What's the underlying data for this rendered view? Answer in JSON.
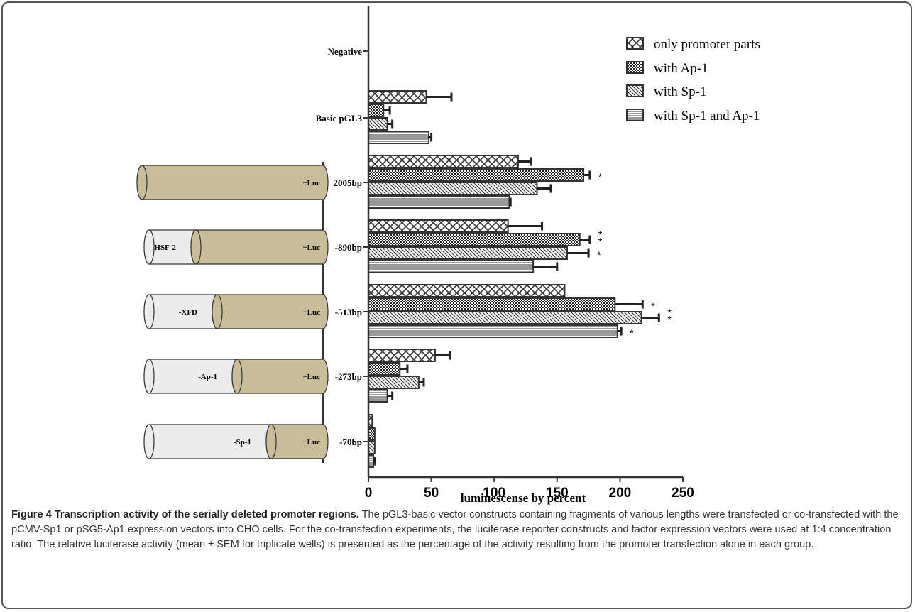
{
  "chart_data": {
    "type": "bar",
    "orientation": "horizontal",
    "categories": [
      "Negative",
      "Basic pGL3",
      "2005bp",
      "-890bp",
      "-513bp",
      "-273bp",
      "-70bp"
    ],
    "series": [
      {
        "name": "only promoter parts",
        "pattern": "crosshatch",
        "values": [
          0,
          46,
          119,
          111,
          156,
          53,
          3
        ],
        "errors": [
          0,
          20,
          10,
          27,
          0,
          12,
          0
        ]
      },
      {
        "name": "with Ap-1",
        "pattern": "dense-grid",
        "values": [
          0,
          12,
          171,
          168,
          196,
          25,
          5
        ],
        "errors": [
          0,
          5,
          5,
          8,
          22,
          6,
          0
        ]
      },
      {
        "name": "with Sp-1",
        "pattern": "diagonal",
        "values": [
          0,
          15,
          134,
          158,
          217,
          40,
          5
        ],
        "errors": [
          0,
          4,
          11,
          17,
          14,
          4,
          0
        ]
      },
      {
        "name": "with Sp-1 and Ap-1",
        "pattern": "horizontal-lines",
        "values": [
          0,
          48,
          112,
          131,
          198,
          15,
          4
        ],
        "errors": [
          0,
          2,
          1,
          19,
          3,
          4,
          1
        ]
      }
    ],
    "significance": [
      {
        "category": "2005bp",
        "series": "with Ap-1",
        "label": "*"
      },
      {
        "category": "-890bp",
        "series": "with Ap-1",
        "label": "*\n*"
      },
      {
        "category": "-890bp",
        "series": "with Sp-1",
        "label": "*"
      },
      {
        "category": "-513bp",
        "series": "with Ap-1",
        "label": "*"
      },
      {
        "category": "-513bp",
        "series": "with Sp-1",
        "label": "*\n*"
      },
      {
        "category": "-513bp",
        "series": "with Sp-1 and Ap-1",
        "label": "*"
      }
    ],
    "xlabel": "luminescense by percent",
    "xlim": [
      0,
      250
    ],
    "xticks": [
      0,
      50,
      100,
      150,
      200,
      250
    ],
    "legend_position": "top-right",
    "constructs": [
      {
        "category": "2005bp",
        "segments": [
          "",
          "+Luc"
        ]
      },
      {
        "category": "-890bp",
        "segments": [
          "-HSF-2",
          "+Luc"
        ]
      },
      {
        "category": "-513bp",
        "segments": [
          "-XFD",
          "+Luc"
        ]
      },
      {
        "category": "-273bp",
        "segments": [
          "-Ap-1",
          "+Luc"
        ]
      },
      {
        "category": "-70bp",
        "segments": [
          "-Sp-1",
          "+Luc"
        ]
      }
    ],
    "colors": {
      "luc": "#c9bc98",
      "promoter": "#ececec",
      "bar": "#ffffff",
      "outline": "#333333"
    }
  },
  "caption": {
    "title": "Figure 4 Transcription activity of the serially deleted promoter regions.",
    "body": " The pGL3-basic vector constructs containing fragments of various lengths were transfected or co-transfected with the pCMV-Sp1 or pSG5-Ap1 expression vectors into CHO cells. For the co-transfection experiments, the luciferase reporter constructs and factor expression vectors were used at 1:4 concentration ratio. The relative luciferase activity (mean ± SEM for triplicate wells) is presented as the percentage of the activity resulting from the promoter transfection alone in each group."
  }
}
